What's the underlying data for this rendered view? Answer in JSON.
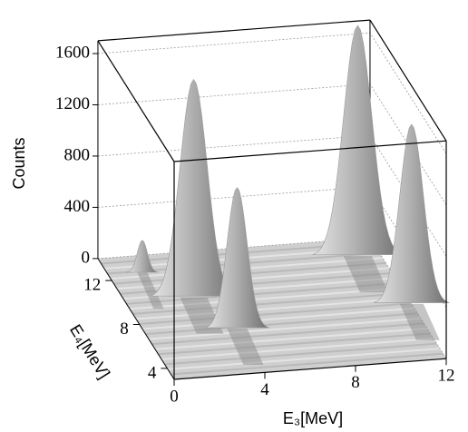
{
  "chart_data": {
    "type": "surface3d",
    "z_label": "Counts",
    "x_label": "E₃[MeV]",
    "y_label": "E₄[MeV]",
    "xlim": [
      0,
      12
    ],
    "xticks": [
      0,
      4,
      8,
      12
    ],
    "ylim": [
      3,
      14
    ],
    "yticks": [
      4,
      8,
      12
    ],
    "zlim": [
      0,
      1700
    ],
    "zticks": [
      0,
      400,
      800,
      1200,
      1600
    ],
    "grid": true,
    "color": "#9a9a9a",
    "peaks": [
      {
        "x": 11,
        "y": 12.5,
        "z": 1800
      },
      {
        "x": 1.5,
        "y": 12.5,
        "z": 250
      },
      {
        "x": 3,
        "y": 10,
        "z": 1700
      },
      {
        "x": 12,
        "y": 8,
        "z": 1400
      },
      {
        "x": 4,
        "y": 7,
        "z": 1100
      }
    ]
  }
}
